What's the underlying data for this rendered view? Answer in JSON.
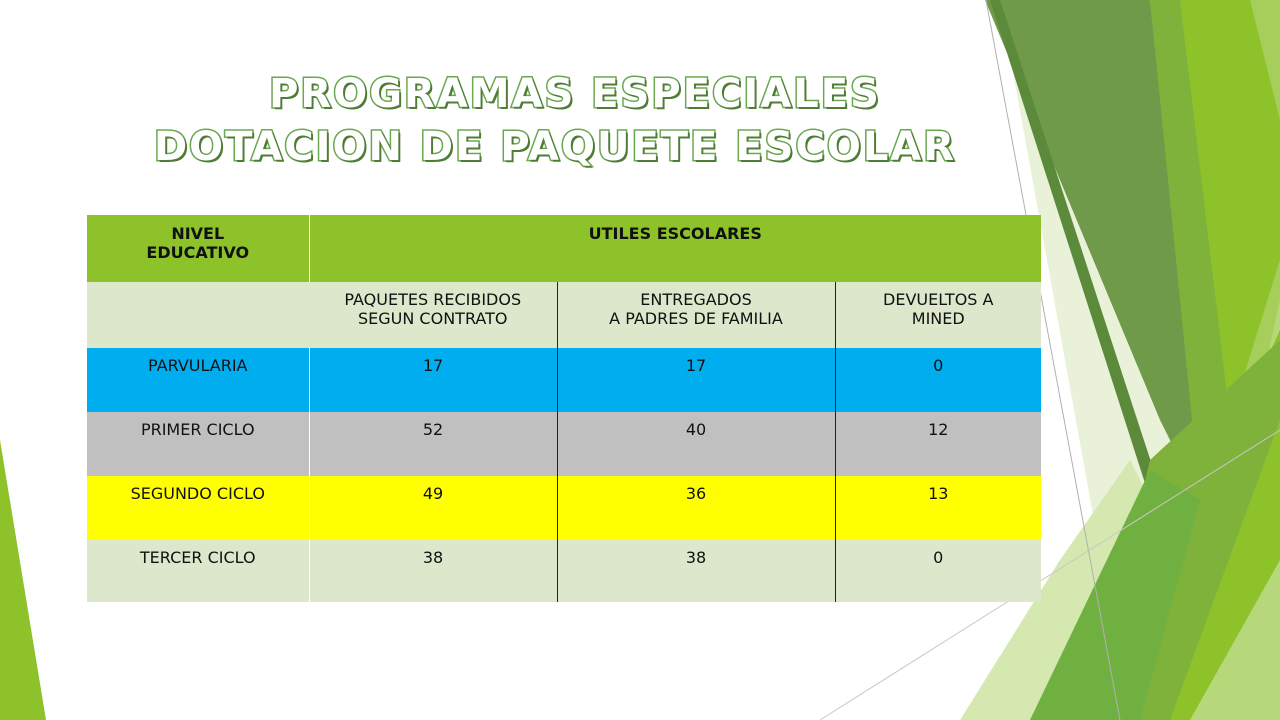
{
  "title": {
    "line1": "PROGRAMAS ESPECIALES",
    "line2": "DOTACION DE PAQUETE ESCOLAR"
  },
  "table": {
    "header": {
      "nivel_line1": "NIVEL",
      "nivel_line2": "EDUCATIVO",
      "utiles": "UTILES ESCOLARES"
    },
    "subheader": {
      "blank": "",
      "recibidos_line1": "PAQUETES RECIBIDOS",
      "recibidos_line2": "SEGUN CONTRATO",
      "entregados_line1": "ENTREGADOS",
      "entregados_line2": "A PADRES DE FAMILIA",
      "devueltos_line1": "DEVUELTOS A",
      "devueltos_line2": "MINED"
    },
    "rows": [
      {
        "nivel": "PARVULARIA",
        "recibidos": "17",
        "entregados": "17",
        "devueltos": "0",
        "color": "#00aeef"
      },
      {
        "nivel": "PRIMER CICLO",
        "recibidos": "52",
        "entregados": "40",
        "devueltos": "12",
        "color": "#c0c0c0"
      },
      {
        "nivel": "SEGUNDO CICLO",
        "recibidos": "49",
        "entregados": "36",
        "devueltos": "13",
        "color": "#ffff00"
      },
      {
        "nivel": "TERCER CICLO",
        "recibidos": "38",
        "entregados": "38",
        "devueltos": "0",
        "color": "#dce7cc"
      }
    ]
  },
  "colors": {
    "header_green": "#8dc22b",
    "light_green": "#dce7cc",
    "title_outline": "#6aa84f"
  }
}
